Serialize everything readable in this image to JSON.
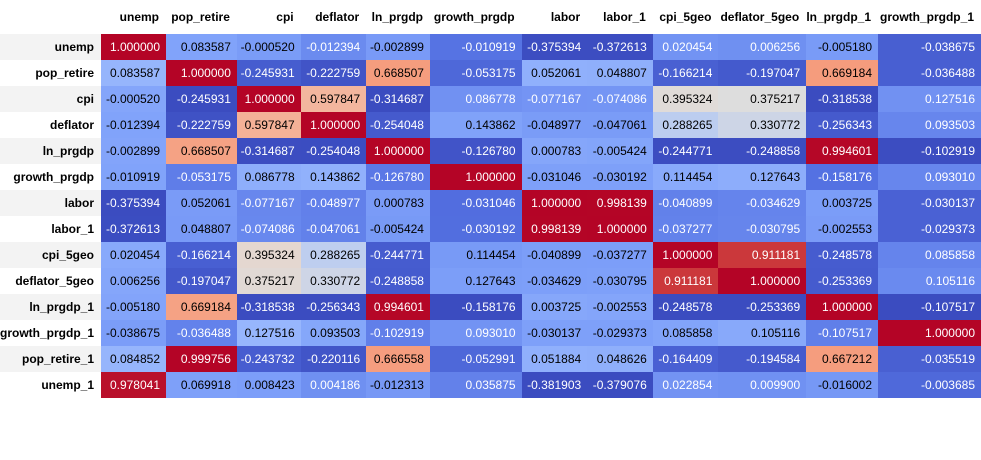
{
  "chart_data": {
    "type": "heatmap",
    "columns": [
      "unemp",
      "pop_retire",
      "cpi",
      "deflator",
      "ln_prgdp",
      "growth_prgdp",
      "labor",
      "labor_1",
      "cpi_5geo",
      "deflator_5geo",
      "ln_prgdp_1",
      "growth_prgdp_1"
    ],
    "rows": [
      "unemp",
      "pop_retire",
      "cpi",
      "deflator",
      "ln_prgdp",
      "growth_prgdp",
      "labor",
      "labor_1",
      "cpi_5geo",
      "deflator_5geo",
      "ln_prgdp_1",
      "growth_prgdp_1",
      "pop_retire_1",
      "unemp_1"
    ],
    "values": [
      [
        "1.000000",
        "0.083587",
        "-0.000520",
        "-0.012394",
        "-0.002899",
        "-0.010919",
        "-0.375394",
        "-0.372613",
        "0.020454",
        "0.006256",
        "-0.005180",
        "-0.038675"
      ],
      [
        "0.083587",
        "1.000000",
        "-0.245931",
        "-0.222759",
        "0.668507",
        "-0.053175",
        "0.052061",
        "0.048807",
        "-0.166214",
        "-0.197047",
        "0.669184",
        "-0.036488"
      ],
      [
        "-0.000520",
        "-0.245931",
        "1.000000",
        "0.597847",
        "-0.314687",
        "0.086778",
        "-0.077167",
        "-0.074086",
        "0.395324",
        "0.375217",
        "-0.318538",
        "0.127516"
      ],
      [
        "-0.012394",
        "-0.222759",
        "0.597847",
        "1.000000",
        "-0.254048",
        "0.143862",
        "-0.048977",
        "-0.047061",
        "0.288265",
        "0.330772",
        "-0.256343",
        "0.093503"
      ],
      [
        "-0.002899",
        "0.668507",
        "-0.314687",
        "-0.254048",
        "1.000000",
        "-0.126780",
        "0.000783",
        "-0.005424",
        "-0.244771",
        "-0.248858",
        "0.994601",
        "-0.102919"
      ],
      [
        "-0.010919",
        "-0.053175",
        "0.086778",
        "0.143862",
        "-0.126780",
        "1.000000",
        "-0.031046",
        "-0.030192",
        "0.114454",
        "0.127643",
        "-0.158176",
        "0.093010"
      ],
      [
        "-0.375394",
        "0.052061",
        "-0.077167",
        "-0.048977",
        "0.000783",
        "-0.031046",
        "1.000000",
        "0.998139",
        "-0.040899",
        "-0.034629",
        "0.003725",
        "-0.030137"
      ],
      [
        "-0.372613",
        "0.048807",
        "-0.074086",
        "-0.047061",
        "-0.005424",
        "-0.030192",
        "0.998139",
        "1.000000",
        "-0.037277",
        "-0.030795",
        "-0.002553",
        "-0.029373"
      ],
      [
        "0.020454",
        "-0.166214",
        "0.395324",
        "0.288265",
        "-0.244771",
        "0.114454",
        "-0.040899",
        "-0.037277",
        "1.000000",
        "0.911181",
        "-0.248578",
        "0.085858"
      ],
      [
        "0.006256",
        "-0.197047",
        "0.375217",
        "0.330772",
        "-0.248858",
        "0.127643",
        "-0.034629",
        "-0.030795",
        "0.911181",
        "1.000000",
        "-0.253369",
        "0.105116"
      ],
      [
        "-0.005180",
        "0.669184",
        "-0.318538",
        "-0.256343",
        "0.994601",
        "-0.158176",
        "0.003725",
        "-0.002553",
        "-0.248578",
        "-0.253369",
        "1.000000",
        "-0.107517"
      ],
      [
        "-0.038675",
        "-0.036488",
        "0.127516",
        "0.093503",
        "-0.102919",
        "0.093010",
        "-0.030137",
        "-0.029373",
        "0.085858",
        "0.105116",
        "-0.107517",
        "1.000000"
      ],
      [
        "0.084852",
        "0.999756",
        "-0.243732",
        "-0.220116",
        "0.666558",
        "-0.052991",
        "0.051884",
        "0.048626",
        "-0.164409",
        "-0.194584",
        "0.667212",
        "-0.035519"
      ],
      [
        "0.978041",
        "0.069918",
        "0.008423",
        "0.004186",
        "-0.012313",
        "0.035875",
        "-0.381903",
        "-0.379076",
        "0.022854",
        "0.009900",
        "-0.016002",
        "-0.003685"
      ]
    ],
    "colormap": "coolwarm",
    "color_scale": "per-column"
  }
}
